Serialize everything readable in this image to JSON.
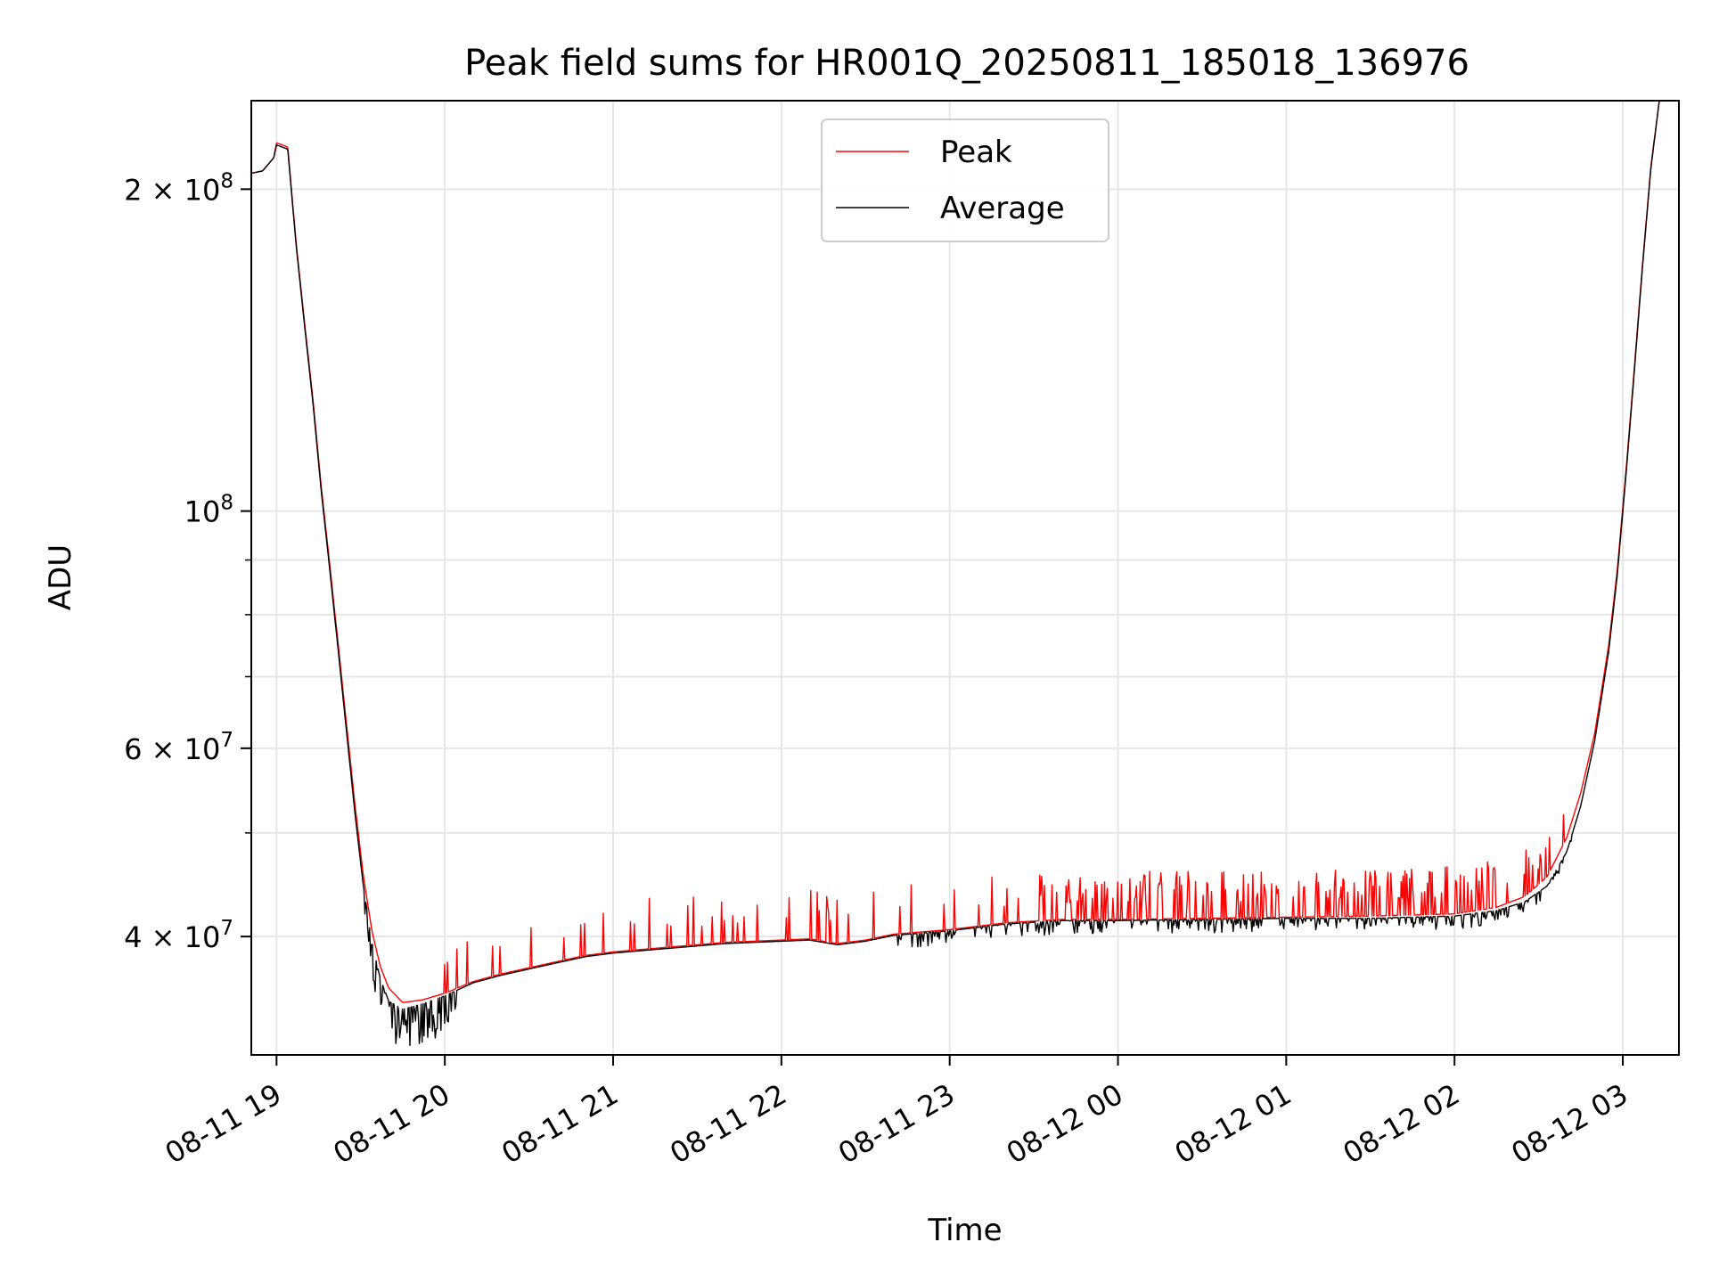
{
  "chart_data": {
    "type": "line",
    "title": "Peak field sums for HR001Q_20250811_185018_136976",
    "xlabel": "Time",
    "ylabel": "ADU",
    "y_scale": "log",
    "xlim": [
      "2025-08-11 18:51",
      "2025-08-12 03:20"
    ],
    "ylim": [
      31000000,
      242000000
    ],
    "grid": true,
    "legend": "upper center",
    "x_ticks": [
      {
        "t": "2025-08-11 19:00",
        "label": "08-11 19"
      },
      {
        "t": "2025-08-11 20:00",
        "label": "08-11 20"
      },
      {
        "t": "2025-08-11 21:00",
        "label": "08-11 21"
      },
      {
        "t": "2025-08-11 22:00",
        "label": "08-11 22"
      },
      {
        "t": "2025-08-11 23:00",
        "label": "08-11 23"
      },
      {
        "t": "2025-08-12 00:00",
        "label": "08-12 00"
      },
      {
        "t": "2025-08-12 01:00",
        "label": "08-12 01"
      },
      {
        "t": "2025-08-12 02:00",
        "label": "08-12 02"
      },
      {
        "t": "2025-08-12 03:00",
        "label": "08-12 03"
      }
    ],
    "y_ticks": [
      {
        "value": 200000000,
        "mantissa": "2",
        "exponent": "8"
      },
      {
        "value": 100000000,
        "mantissa": "",
        "exponent": "8"
      },
      {
        "value": 60000000,
        "mantissa": "6",
        "exponent": "7"
      },
      {
        "value": 40000000,
        "mantissa": "4",
        "exponent": "7"
      }
    ],
    "y_minor_ticks": [
      300000000,
      90000000,
      80000000,
      70000000,
      50000000,
      30000000
    ],
    "series": [
      {
        "name": "Peak",
        "color": "#ff0000",
        "spike_amplitude": "up to ~4.5e6 above baseline between 19:40 and 02:40",
        "points": [
          [
            "2025-08-11 18:51",
            207000000
          ],
          [
            "2025-08-11 18:55",
            208000000
          ],
          [
            "2025-08-11 18:59",
            214000000
          ],
          [
            "2025-08-11 19:00",
            221000000
          ],
          [
            "2025-08-11 19:04",
            219000000
          ],
          [
            "2025-08-11 19:07",
            178000000
          ],
          [
            "2025-08-11 19:10",
            150000000
          ],
          [
            "2025-08-11 19:13",
            127000000
          ],
          [
            "2025-08-11 19:16",
            105000000
          ],
          [
            "2025-08-11 19:19",
            89000000
          ],
          [
            "2025-08-11 19:22",
            75000000
          ],
          [
            "2025-08-11 19:25",
            63000000
          ],
          [
            "2025-08-11 19:28",
            53000000
          ],
          [
            "2025-08-11 19:31",
            45500000
          ],
          [
            "2025-08-11 19:34",
            40500000
          ],
          [
            "2025-08-11 19:37",
            37500000
          ],
          [
            "2025-08-11 19:40",
            35800000
          ],
          [
            "2025-08-11 19:45",
            34700000
          ],
          [
            "2025-08-11 19:52",
            34900000
          ],
          [
            "2025-08-11 20:00",
            35400000
          ],
          [
            "2025-08-11 20:10",
            36300000
          ],
          [
            "2025-08-11 20:20",
            36900000
          ],
          [
            "2025-08-11 20:30",
            37400000
          ],
          [
            "2025-08-11 20:40",
            37900000
          ],
          [
            "2025-08-11 20:50",
            38400000
          ],
          [
            "2025-08-11 21:00",
            38700000
          ],
          [
            "2025-08-11 21:20",
            39100000
          ],
          [
            "2025-08-11 21:40",
            39500000
          ],
          [
            "2025-08-11 22:00",
            39700000
          ],
          [
            "2025-08-11 22:10",
            39800000
          ],
          [
            "2025-08-11 22:20",
            39400000
          ],
          [
            "2025-08-11 22:30",
            39700000
          ],
          [
            "2025-08-11 22:40",
            40200000
          ],
          [
            "2025-08-11 23:00",
            40600000
          ],
          [
            "2025-08-11 23:20",
            41200000
          ],
          [
            "2025-08-11 23:40",
            41500000
          ],
          [
            "2025-08-12 00:00",
            41500000
          ],
          [
            "2025-08-12 00:30",
            41600000
          ],
          [
            "2025-08-12 01:00",
            41700000
          ],
          [
            "2025-08-12 01:30",
            41800000
          ],
          [
            "2025-08-12 02:00",
            42000000
          ],
          [
            "2025-08-12 02:15",
            42600000
          ],
          [
            "2025-08-12 02:25",
            43600000
          ],
          [
            "2025-08-12 02:33",
            45500000
          ],
          [
            "2025-08-12 02:40",
            49500000
          ],
          [
            "2025-08-12 02:45",
            54500000
          ],
          [
            "2025-08-12 02:50",
            62000000
          ],
          [
            "2025-08-12 02:55",
            75000000
          ],
          [
            "2025-08-12 02:58",
            88000000
          ],
          [
            "2025-08-12 03:01",
            108000000
          ],
          [
            "2025-08-12 03:04",
            135000000
          ],
          [
            "2025-08-12 03:07",
            170000000
          ],
          [
            "2025-08-12 03:10",
            210000000
          ],
          [
            "2025-08-12 03:13",
            242000000
          ]
        ]
      },
      {
        "name": "Average",
        "color": "#000000",
        "spike_amplitude": "dips down to ~2.5e6 below baseline after 22:40 and near the 19:40 minimum",
        "points": [
          [
            "2025-08-11 18:51",
            207000000
          ],
          [
            "2025-08-11 18:55",
            208000000
          ],
          [
            "2025-08-11 18:59",
            214000000
          ],
          [
            "2025-08-11 19:00",
            220000000
          ],
          [
            "2025-08-11 19:04",
            218000000
          ],
          [
            "2025-08-11 19:07",
            177000000
          ],
          [
            "2025-08-11 19:10",
            149000000
          ],
          [
            "2025-08-11 19:13",
            126000000
          ],
          [
            "2025-08-11 19:16",
            104000000
          ],
          [
            "2025-08-11 19:19",
            88000000
          ],
          [
            "2025-08-11 19:22",
            74000000
          ],
          [
            "2025-08-11 19:25",
            62000000
          ],
          [
            "2025-08-11 19:28",
            52000000
          ],
          [
            "2025-08-11 19:31",
            44500000
          ],
          [
            "2025-08-11 19:34",
            39500000
          ],
          [
            "2025-08-11 19:37",
            36500000
          ],
          [
            "2025-08-11 19:40",
            34800000
          ],
          [
            "2025-08-11 19:45",
            34200000
          ],
          [
            "2025-08-11 19:52",
            34600000
          ],
          [
            "2025-08-11 20:00",
            35200000
          ],
          [
            "2025-08-11 20:10",
            36200000
          ],
          [
            "2025-08-11 20:20",
            36800000
          ],
          [
            "2025-08-11 20:30",
            37300000
          ],
          [
            "2025-08-11 20:40",
            37800000
          ],
          [
            "2025-08-11 20:50",
            38300000
          ],
          [
            "2025-08-11 21:00",
            38600000
          ],
          [
            "2025-08-11 21:20",
            39000000
          ],
          [
            "2025-08-11 21:40",
            39400000
          ],
          [
            "2025-08-11 22:00",
            39600000
          ],
          [
            "2025-08-11 22:10",
            39700000
          ],
          [
            "2025-08-11 22:20",
            39300000
          ],
          [
            "2025-08-11 22:30",
            39600000
          ],
          [
            "2025-08-11 22:40",
            40100000
          ],
          [
            "2025-08-11 23:00",
            40500000
          ],
          [
            "2025-08-11 23:20",
            41100000
          ],
          [
            "2025-08-11 23:40",
            41400000
          ],
          [
            "2025-08-12 00:00",
            41400000
          ],
          [
            "2025-08-12 00:30",
            41500000
          ],
          [
            "2025-08-12 01:00",
            41600000
          ],
          [
            "2025-08-12 01:30",
            41600000
          ],
          [
            "2025-08-12 02:00",
            41800000
          ],
          [
            "2025-08-12 02:15",
            42300000
          ],
          [
            "2025-08-12 02:25",
            43100000
          ],
          [
            "2025-08-12 02:33",
            44600000
          ],
          [
            "2025-08-12 02:40",
            48000000
          ],
          [
            "2025-08-12 02:45",
            53000000
          ],
          [
            "2025-08-12 02:50",
            61000000
          ],
          [
            "2025-08-12 02:55",
            74000000
          ],
          [
            "2025-08-12 02:58",
            87000000
          ],
          [
            "2025-08-12 03:01",
            107000000
          ],
          [
            "2025-08-12 03:04",
            134000000
          ],
          [
            "2025-08-12 03:07",
            169000000
          ],
          [
            "2025-08-12 03:10",
            209000000
          ],
          [
            "2025-08-12 03:13",
            242000000
          ]
        ]
      }
    ]
  }
}
